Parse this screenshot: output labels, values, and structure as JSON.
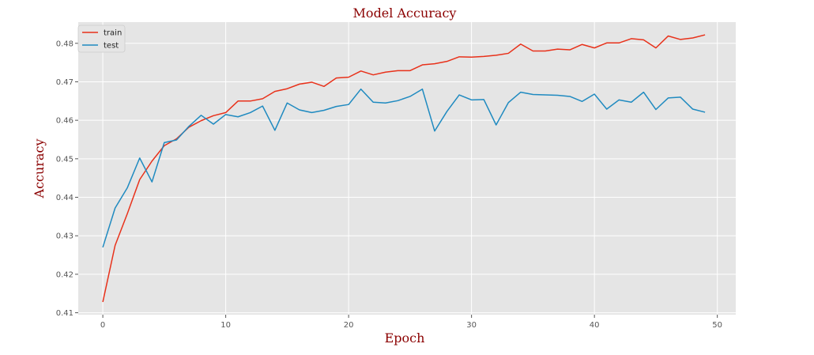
{
  "chart_data": {
    "type": "line",
    "title": "Model Accuracy",
    "xlabel": "Epoch",
    "ylabel": "Accuracy",
    "xlim": [
      -2,
      51.5
    ],
    "ylim": [
      0.4095,
      0.4855
    ],
    "xticks": [
      0,
      10,
      20,
      30,
      40,
      50
    ],
    "xtick_labels": [
      "0",
      "10",
      "20",
      "30",
      "40",
      "50"
    ],
    "yticks": [
      0.41,
      0.42,
      0.43,
      0.44,
      0.45,
      0.46,
      0.47,
      0.48
    ],
    "ytick_labels": [
      "0.41",
      "0.42",
      "0.43",
      "0.44",
      "0.45",
      "0.46",
      "0.47",
      "0.48"
    ],
    "grid": true,
    "legend_position": "top-left",
    "x": [
      0,
      1,
      2,
      3,
      4,
      5,
      6,
      7,
      8,
      9,
      10,
      11,
      12,
      13,
      14,
      15,
      16,
      17,
      18,
      19,
      20,
      21,
      22,
      23,
      24,
      25,
      26,
      27,
      28,
      29,
      30,
      31,
      32,
      33,
      34,
      35,
      36,
      37,
      38,
      39,
      40,
      41,
      42,
      43,
      44,
      45,
      46,
      47,
      48,
      49
    ],
    "series": [
      {
        "name": "train",
        "color": "#e8311a",
        "values": [
          0.4128,
          0.4275,
          0.4358,
          0.4446,
          0.4494,
          0.4534,
          0.4552,
          0.4582,
          0.4599,
          0.4612,
          0.462,
          0.465,
          0.465,
          0.4656,
          0.4675,
          0.4682,
          0.4694,
          0.4699,
          0.4688,
          0.471,
          0.4712,
          0.4728,
          0.4718,
          0.4725,
          0.4729,
          0.4729,
          0.4744,
          0.4747,
          0.4753,
          0.4765,
          0.4764,
          0.4766,
          0.4769,
          0.4774,
          0.4798,
          0.478,
          0.478,
          0.4785,
          0.4783,
          0.4797,
          0.4788,
          0.4801,
          0.4801,
          0.4812,
          0.4809,
          0.4788,
          0.4819,
          0.481,
          0.4814,
          0.4822
        ]
      },
      {
        "name": "test",
        "color": "#1f8ac0",
        "values": [
          0.427,
          0.4372,
          0.4425,
          0.4502,
          0.444,
          0.4542,
          0.4549,
          0.4584,
          0.4613,
          0.459,
          0.4615,
          0.4609,
          0.462,
          0.4637,
          0.4574,
          0.4645,
          0.4627,
          0.462,
          0.4626,
          0.4636,
          0.4641,
          0.4681,
          0.4647,
          0.4645,
          0.4651,
          0.4662,
          0.4681,
          0.4572,
          0.4623,
          0.4666,
          0.4653,
          0.4654,
          0.4588,
          0.4646,
          0.4673,
          0.4667,
          0.4666,
          0.4665,
          0.4662,
          0.4649,
          0.4668,
          0.4629,
          0.4653,
          0.4647,
          0.4673,
          0.4628,
          0.4658,
          0.466,
          0.4629,
          0.4621
        ]
      }
    ]
  }
}
